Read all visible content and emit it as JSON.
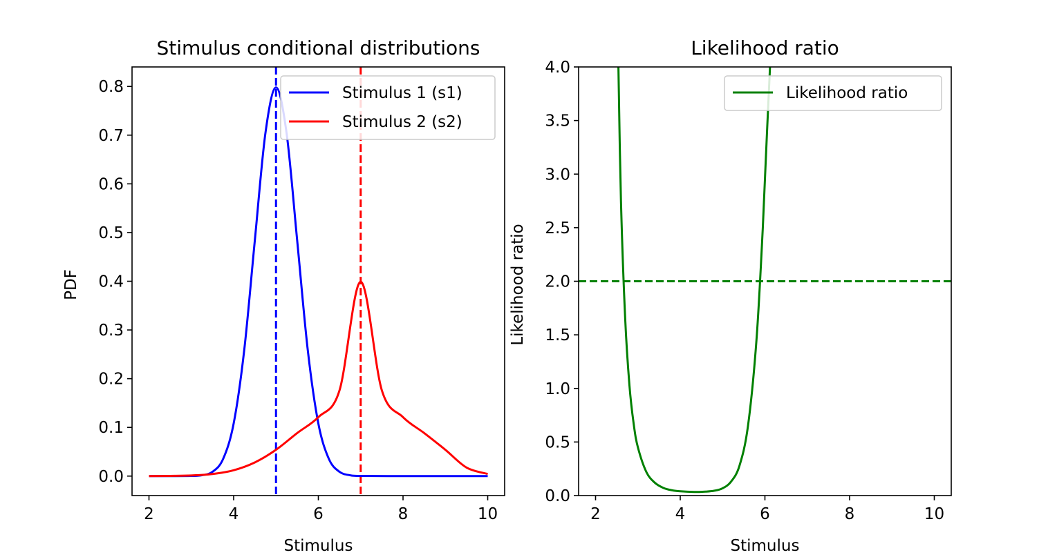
{
  "chart_data": [
    {
      "type": "line",
      "title": "Stimulus conditional distributions",
      "xlabel": "Stimulus",
      "ylabel": "PDF",
      "xlim": [
        1.6,
        10.4
      ],
      "ylim": [
        -0.04,
        0.84
      ],
      "xticks": [
        2,
        4,
        6,
        8,
        10
      ],
      "xtick_labels": [
        "2",
        "4",
        "6",
        "8",
        "10"
      ],
      "yticks": [
        0.0,
        0.1,
        0.2,
        0.3,
        0.4,
        0.5,
        0.6,
        0.7,
        0.8
      ],
      "ytick_labels": [
        "0.0",
        "0.1",
        "0.2",
        "0.3",
        "0.4",
        "0.5",
        "0.6",
        "0.7",
        "0.8"
      ],
      "grid": false,
      "legend_position": "top-right",
      "series": [
        {
          "name": "Stimulus 1 (s1)",
          "color": "#0000ff",
          "x": [
            2.0,
            2.5,
            3.0,
            3.25,
            3.5,
            3.75,
            4.0,
            4.25,
            4.5,
            4.75,
            5.0,
            5.25,
            5.5,
            5.75,
            6.0,
            6.25,
            6.5,
            6.75,
            7.0,
            8.0,
            9.0,
            10.0
          ],
          "y": [
            0.0,
            0.0,
            0.0003,
            0.0017,
            0.0088,
            0.035,
            0.108,
            0.259,
            0.4839,
            0.7041,
            0.7979,
            0.7041,
            0.4839,
            0.259,
            0.108,
            0.035,
            0.0088,
            0.0017,
            0.0003,
            0.0,
            0.0,
            0.0
          ]
        },
        {
          "name": "Stimulus 2 (s2)",
          "color": "#ff0000",
          "x": [
            2.0,
            2.5,
            3.0,
            3.5,
            4.0,
            4.5,
            5.0,
            5.5,
            6.0,
            6.5,
            7.0,
            7.5,
            8.0,
            8.5,
            9.0,
            9.5,
            10.0
          ],
          "y": [
            0.0001,
            0.0004,
            0.0013,
            0.0043,
            0.012,
            0.028,
            0.054,
            0.0883,
            0.121,
            0.176,
            0.3989,
            0.176,
            0.121,
            0.0883,
            0.054,
            0.0175,
            0.0044
          ]
        }
      ],
      "vlines": [
        {
          "x": 5,
          "color": "#0000ff",
          "style": "dashed"
        },
        {
          "x": 7,
          "color": "#ff0000",
          "style": "dashed"
        }
      ]
    },
    {
      "type": "line",
      "title": "Likelihood ratio",
      "xlabel": "Stimulus",
      "ylabel": "Likelihood ratio",
      "xlim": [
        1.6,
        10.4
      ],
      "ylim": [
        0.0,
        4.0
      ],
      "xticks": [
        2,
        4,
        6,
        8,
        10
      ],
      "xtick_labels": [
        "2",
        "4",
        "6",
        "8",
        "10"
      ],
      "yticks": [
        0.0,
        0.5,
        1.0,
        1.5,
        2.0,
        2.5,
        3.0,
        3.5,
        4.0
      ],
      "ytick_labels": [
        "0.0",
        "0.5",
        "1.0",
        "1.5",
        "2.0",
        "2.5",
        "3.0",
        "3.5",
        "4.0"
      ],
      "grid": false,
      "legend_position": "top-right",
      "series": [
        {
          "name": "Likelihood ratio",
          "color": "#008000",
          "x": [
            2.54,
            2.6,
            2.7,
            2.8,
            2.9,
            3.0,
            3.2,
            3.4,
            3.6,
            3.8,
            4.0,
            4.33,
            4.6,
            4.8,
            5.0,
            5.2,
            5.4,
            5.6,
            5.8,
            5.95,
            6.05,
            6.12
          ],
          "y": [
            4.0,
            2.75,
            1.65,
            1.03,
            0.67,
            0.45,
            0.22,
            0.12,
            0.072,
            0.05,
            0.04,
            0.034,
            0.037,
            0.045,
            0.068,
            0.13,
            0.28,
            0.65,
            1.45,
            2.5,
            3.4,
            4.0
          ]
        }
      ],
      "hlines": [
        {
          "y": 2.0,
          "color": "#008000",
          "style": "dashed"
        }
      ]
    }
  ]
}
